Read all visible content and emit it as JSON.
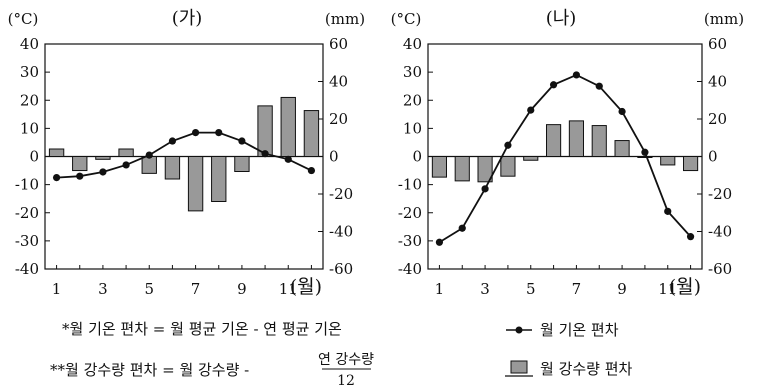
{
  "chart_data": [
    {
      "type": "bar+line",
      "title": "(가)",
      "left_axis_unit": "(°C)",
      "right_axis_unit": "(mm)",
      "x_axis_unit": "(월)",
      "x_ticks": [
        "1",
        "3",
        "5",
        "7",
        "9",
        "11"
      ],
      "ylim_temp": [
        -40,
        40
      ],
      "y_ticks_temp": [
        "40",
        "30",
        "20",
        "10",
        "0",
        "-10",
        "-20",
        "-30",
        "-40"
      ],
      "ylim_precip": [
        -60,
        60
      ],
      "y_ticks_precip": [
        "60",
        "40",
        "20",
        "0",
        "-20",
        "-40",
        "-60"
      ],
      "months": [
        1,
        2,
        3,
        4,
        5,
        6,
        7,
        8,
        9,
        10,
        11,
        12
      ],
      "temperature_deviation": [
        -7.5,
        -7,
        -5.5,
        -3,
        0.5,
        5.5,
        8.5,
        8.5,
        5.5,
        1,
        -1,
        -5
      ],
      "precipitation_deviation": [
        4,
        -7.5,
        -1.5,
        4,
        -9,
        -12,
        -29,
        -24,
        -8,
        27,
        31.5,
        24.5
      ]
    },
    {
      "type": "bar+line",
      "title": "(나)",
      "left_axis_unit": "(°C)",
      "right_axis_unit": "(mm)",
      "x_axis_unit": "(월)",
      "x_ticks": [
        "1",
        "3",
        "5",
        "7",
        "9",
        "11"
      ],
      "ylim_temp": [
        -40,
        40
      ],
      "y_ticks_temp": [
        "40",
        "30",
        "20",
        "10",
        "0",
        "-10",
        "-20",
        "-30",
        "-40"
      ],
      "ylim_precip": [
        -60,
        60
      ],
      "y_ticks_precip": [
        "60",
        "40",
        "20",
        "0",
        "-20",
        "-40",
        "-60"
      ],
      "months": [
        1,
        2,
        3,
        4,
        5,
        6,
        7,
        8,
        9,
        10,
        11,
        12
      ],
      "temperature_deviation": [
        -30.5,
        -25.5,
        -11.5,
        4,
        16.5,
        25.5,
        29,
        25,
        16,
        1.5,
        -19.5,
        -28.5
      ],
      "precipitation_deviation": [
        -11,
        -13,
        -13.5,
        -10.5,
        -2,
        17,
        19,
        16.5,
        8.5,
        0,
        -4.5,
        -7.5
      ]
    }
  ],
  "notes": {
    "note1": "*월 기온 편차 = 월 평균 기온 - 연 평균 기온",
    "note2_prefix": "**월 강수량 편차 = 월 강수량 -",
    "note2_numerator": "연 강수량",
    "note2_denominator": "12"
  },
  "legend": {
    "temp_label": "월 기온 편차",
    "precip_label": "월 강수량 편차"
  }
}
